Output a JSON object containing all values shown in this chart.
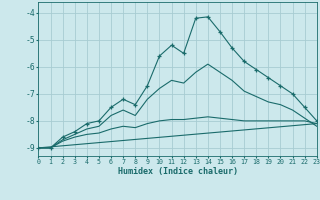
{
  "xlabel": "Humidex (Indice chaleur)",
  "xlim": [
    0,
    23
  ],
  "ylim": [
    -9.3,
    -3.6
  ],
  "yticks": [
    -9,
    -8,
    -7,
    -6,
    -5,
    -4
  ],
  "xticks": [
    0,
    1,
    2,
    3,
    4,
    5,
    6,
    7,
    8,
    9,
    10,
    11,
    12,
    13,
    14,
    15,
    16,
    17,
    18,
    19,
    20,
    21,
    22,
    23
  ],
  "bg_color": "#cce8ec",
  "grid_color": "#a8ccd2",
  "line_color": "#1a6b6b",
  "curves": [
    {
      "x": [
        0,
        1,
        2,
        3,
        4,
        5,
        6,
        7,
        8,
        9,
        10,
        11,
        12,
        13,
        14,
        15,
        16,
        17,
        18,
        19,
        20,
        21,
        22,
        23
      ],
      "y": [
        -9.0,
        -9.0,
        -8.6,
        -8.4,
        -8.1,
        -8.0,
        -7.5,
        -7.2,
        -7.4,
        -6.7,
        -5.6,
        -5.2,
        -5.5,
        -4.2,
        -4.15,
        -4.7,
        -5.3,
        -5.8,
        -6.1,
        -6.4,
        -6.7,
        -7.0,
        -7.5,
        -8.0
      ],
      "marker": true
    },
    {
      "x": [
        0,
        1,
        2,
        3,
        4,
        5,
        6,
        7,
        8,
        9,
        10,
        11,
        12,
        13,
        14,
        15,
        16,
        17,
        18,
        19,
        20,
        21,
        22,
        23
      ],
      "y": [
        -9.0,
        -9.0,
        -8.7,
        -8.5,
        -8.3,
        -8.2,
        -7.8,
        -7.6,
        -7.8,
        -7.2,
        -6.8,
        -6.5,
        -6.6,
        -6.2,
        -5.9,
        -6.2,
        -6.5,
        -6.9,
        -7.1,
        -7.3,
        -7.4,
        -7.6,
        -7.9,
        -8.2
      ],
      "marker": false
    },
    {
      "x": [
        0,
        1,
        2,
        3,
        4,
        5,
        6,
        7,
        8,
        9,
        10,
        11,
        12,
        13,
        14,
        15,
        16,
        17,
        18,
        19,
        20,
        21,
        22,
        23
      ],
      "y": [
        -9.0,
        -9.0,
        -8.75,
        -8.6,
        -8.5,
        -8.45,
        -8.3,
        -8.2,
        -8.25,
        -8.1,
        -8.0,
        -7.95,
        -7.95,
        -7.9,
        -7.85,
        -7.9,
        -7.95,
        -8.0,
        -8.0,
        -8.0,
        -8.0,
        -8.0,
        -8.0,
        -8.1
      ],
      "marker": false
    },
    {
      "x": [
        0,
        23
      ],
      "y": [
        -9.0,
        -8.1
      ],
      "marker": false
    }
  ]
}
